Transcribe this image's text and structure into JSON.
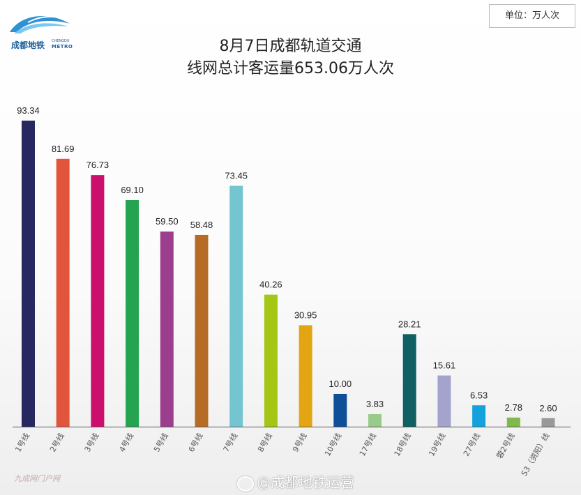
{
  "logo": {
    "cn": "成都地铁",
    "en1": "CHENGDU",
    "en2": "METRO"
  },
  "unit_label": "单位：万人次",
  "colors": {
    "bars": [
      "#27285f",
      "#e2553d",
      "#cc0f6d",
      "#24a451",
      "#9b3e8e",
      "#b76c26",
      "#74c5d0",
      "#a4c615",
      "#e3a512",
      "#0e4f97",
      "#9acb8a",
      "#0f5f63",
      "#a3a3cd",
      "#14a2dd",
      "#7fb94a",
      "#999999"
    ],
    "axis": "#555555"
  },
  "watermark_left": "九成网门户网",
  "watermark": "@成都地铁运营",
  "chart_data": {
    "type": "bar",
    "title": "8月7日成都轨道交通",
    "subtitle": "线网总计客运量653.06万人次",
    "categories": [
      "1号线",
      "2号线",
      "3号线",
      "4号线",
      "5号线",
      "6号线",
      "7号线",
      "8号线",
      "9号线",
      "10号线",
      "17号线",
      "18号线",
      "19号线",
      "27号线",
      "蓉2号线",
      "S3（资阳）线"
    ],
    "values": [
      93.34,
      81.69,
      76.73,
      69.1,
      59.5,
      58.48,
      73.45,
      40.26,
      30.95,
      10.0,
      3.83,
      28.21,
      15.61,
      6.53,
      2.78,
      2.6
    ],
    "value_labels": [
      "93.34",
      "81.69",
      "76.73",
      "69.10",
      "59.50",
      "58.48",
      "73.45",
      "40.26",
      "30.95",
      "10.00",
      "3.83",
      "28.21",
      "15.61",
      "6.53",
      "2.78",
      "2.60"
    ],
    "ylim": [
      0,
      93.34
    ],
    "grid": false,
    "legend": "none"
  }
}
